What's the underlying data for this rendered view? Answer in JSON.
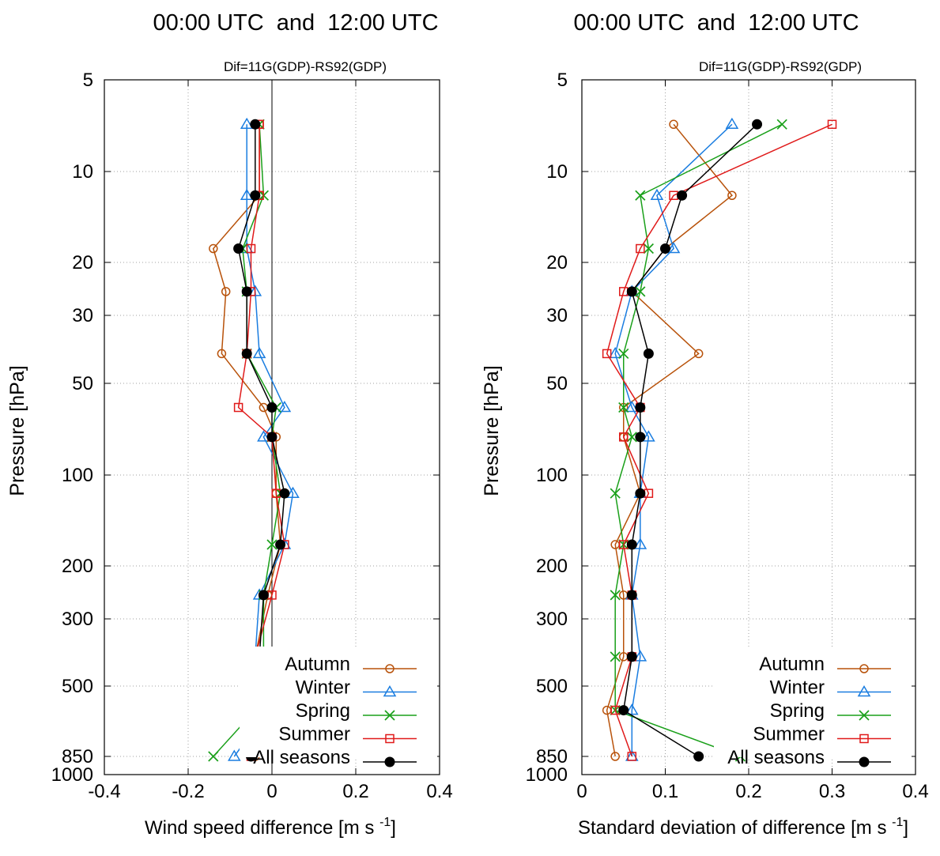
{
  "chart_data": [
    {
      "type": "line",
      "title": "00:00 UTC  and  12:00 UTC",
      "subtitle": "Dif=11G(GDP)-RS92(GDP)",
      "xlabel": "Wind speed difference [m s",
      "xlabel_sup": "-1",
      "xlabel_end": "]",
      "ylabel": "Pressure [hPa]",
      "xlim": [
        -0.4,
        0.4
      ],
      "ylim": [
        1000,
        5
      ],
      "y_scale": "log-ish (pressure axis)",
      "x_ticks": [
        "-0.4",
        "-0.2",
        "0",
        "0.2",
        "0.4"
      ],
      "y_ticks": [
        "5",
        "10",
        "20",
        "30",
        "50",
        "100",
        "200",
        "300",
        "500",
        "850",
        "1000"
      ],
      "grid": true,
      "legend_position": "bottom-right",
      "y": [
        7,
        12,
        18,
        25,
        40,
        60,
        75,
        115,
        170,
        250,
        400,
        600,
        850
      ],
      "series": [
        {
          "name": "Autumn",
          "color": "#b8520a",
          "marker": "circle",
          "values": [
            -0.03,
            -0.03,
            -0.14,
            -0.11,
            -0.12,
            -0.02,
            0.01,
            0.01,
            0.02,
            -0.01,
            -0.04,
            -0.03,
            -0.04
          ]
        },
        {
          "name": "Winter",
          "color": "#1a7de0",
          "marker": "triangle",
          "values": [
            -0.06,
            -0.06,
            -0.06,
            -0.04,
            -0.03,
            0.03,
            -0.02,
            0.05,
            0.03,
            -0.03,
            -0.04,
            -0.01,
            -0.09
          ]
        },
        {
          "name": "Spring",
          "color": "#1aa01a",
          "marker": "x",
          "values": [
            -0.03,
            -0.02,
            -0.07,
            -0.06,
            -0.06,
            0.01,
            0.0,
            0.02,
            0.0,
            -0.02,
            -0.02,
            -0.04,
            -0.14
          ]
        },
        {
          "name": "Summer",
          "color": "#e01a1a",
          "marker": "square",
          "values": [
            -0.03,
            -0.03,
            -0.05,
            -0.05,
            -0.06,
            -0.08,
            0.0,
            0.01,
            0.03,
            0.0,
            -0.04,
            -0.03,
            -0.05
          ]
        },
        {
          "name": "All seasons",
          "color": "#000000",
          "marker": "dot",
          "values": [
            -0.04,
            -0.04,
            -0.08,
            -0.06,
            -0.06,
            0.0,
            0.0,
            0.03,
            0.02,
            -0.02,
            -0.03,
            -0.02,
            -0.05
          ]
        }
      ]
    },
    {
      "type": "line",
      "title": "00:00 UTC  and  12:00 UTC",
      "subtitle": "Dif=11G(GDP)-RS92(GDP)",
      "xlabel": "Standard deviation of difference [m s",
      "xlabel_sup": "-1",
      "xlabel_end": "]",
      "ylabel": "Pressure [hPa]",
      "xlim": [
        0,
        0.4
      ],
      "ylim": [
        1000,
        5
      ],
      "y_scale": "log-ish (pressure axis)",
      "x_ticks": [
        "0",
        "0.1",
        "0.2",
        "0.3",
        "0.4"
      ],
      "y_ticks": [
        "5",
        "10",
        "20",
        "30",
        "50",
        "100",
        "200",
        "300",
        "500",
        "850",
        "1000"
      ],
      "grid": true,
      "legend_position": "bottom-right",
      "y": [
        7,
        12,
        18,
        25,
        40,
        60,
        75,
        115,
        170,
        250,
        400,
        600,
        850
      ],
      "series": [
        {
          "name": "Autumn",
          "color": "#b8520a",
          "marker": "circle",
          "values": [
            0.11,
            0.18,
            0.1,
            0.06,
            0.14,
            0.05,
            0.05,
            0.07,
            0.04,
            0.05,
            0.05,
            0.03,
            0.04
          ]
        },
        {
          "name": "Winter",
          "color": "#1a7de0",
          "marker": "triangle",
          "values": [
            0.18,
            0.09,
            0.11,
            0.06,
            0.04,
            0.06,
            0.08,
            0.07,
            0.07,
            0.06,
            0.07,
            0.06,
            0.06
          ]
        },
        {
          "name": "Spring",
          "color": "#1aa01a",
          "marker": "x",
          "values": [
            0.24,
            0.07,
            0.08,
            0.07,
            0.05,
            0.05,
            0.06,
            0.04,
            0.05,
            0.04,
            0.04,
            0.04,
            0.19
          ]
        },
        {
          "name": "Summer",
          "color": "#e01a1a",
          "marker": "square",
          "values": [
            0.3,
            0.11,
            0.07,
            0.05,
            0.03,
            0.07,
            0.05,
            0.08,
            0.05,
            0.06,
            0.06,
            0.04,
            0.06
          ]
        },
        {
          "name": "All seasons",
          "color": "#000000",
          "marker": "dot",
          "values": [
            0.21,
            0.12,
            0.1,
            0.06,
            0.08,
            0.07,
            0.07,
            0.07,
            0.06,
            0.06,
            0.06,
            0.05,
            0.14
          ]
        }
      ]
    }
  ]
}
